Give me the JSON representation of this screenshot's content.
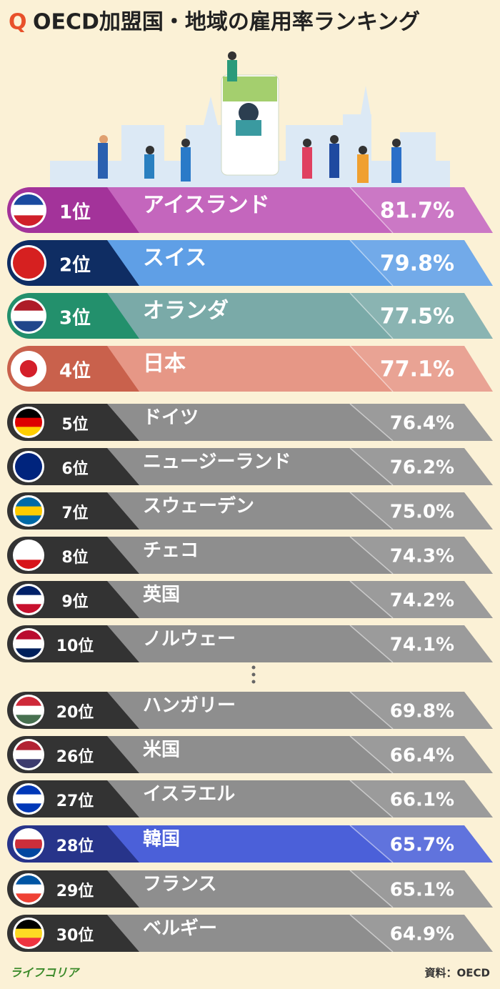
{
  "header": {
    "mark": "Q",
    "title": "OECD加盟国・地域の雇用率ランキング"
  },
  "rows": [
    {
      "rank": "1位",
      "name": "アイスランド",
      "value": "81.7%",
      "color": "#c466bd",
      "dark": "#a3339a"
    },
    {
      "rank": "2位",
      "name": "スイス",
      "value": "79.8%",
      "color": "#5f9fe6",
      "dark": "#0f2d63"
    },
    {
      "rank": "3位",
      "name": "オランダ",
      "value": "77.5%",
      "color": "#7aaaa8",
      "dark": "#23906c"
    },
    {
      "rank": "4位",
      "name": "日本",
      "value": "77.1%",
      "color": "#e69786",
      "dark": "#c9614c"
    },
    {
      "rank": "5位",
      "name": "ドイツ",
      "value": "76.4%",
      "color": "#8e8e8e",
      "dark": "#333333"
    },
    {
      "rank": "6位",
      "name": "ニュージーランド",
      "value": "76.2%",
      "color": "#8e8e8e",
      "dark": "#333333"
    },
    {
      "rank": "7位",
      "name": "スウェーデン",
      "value": "75.0%",
      "color": "#8e8e8e",
      "dark": "#333333"
    },
    {
      "rank": "8位",
      "name": "チェコ",
      "value": "74.3%",
      "color": "#8e8e8e",
      "dark": "#333333"
    },
    {
      "rank": "9位",
      "name": "英国",
      "value": "74.2%",
      "color": "#8e8e8e",
      "dark": "#333333"
    },
    {
      "rank": "10位",
      "name": "ノルウェー",
      "value": "74.1%",
      "color": "#8e8e8e",
      "dark": "#333333"
    },
    {
      "rank": "20位",
      "name": "ハンガリー",
      "value": "69.8%",
      "color": "#8e8e8e",
      "dark": "#333333"
    },
    {
      "rank": "26位",
      "name": "米国",
      "value": "66.4%",
      "color": "#8e8e8e",
      "dark": "#333333"
    },
    {
      "rank": "27位",
      "name": "イスラエル",
      "value": "66.1%",
      "color": "#8e8e8e",
      "dark": "#333333"
    },
    {
      "rank": "28位",
      "name": "韓国",
      "value": "65.7%",
      "color": "#4b60d9",
      "dark": "#27348a"
    },
    {
      "rank": "29位",
      "name": "フランス",
      "value": "65.1%",
      "color": "#8e8e8e",
      "dark": "#333333"
    },
    {
      "rank": "30位",
      "name": "ベルギー",
      "value": "64.9%",
      "color": "#8e8e8e",
      "dark": "#333333"
    }
  ],
  "footer": {
    "brand": "ライフコリア",
    "source": "資料：OECD"
  }
}
